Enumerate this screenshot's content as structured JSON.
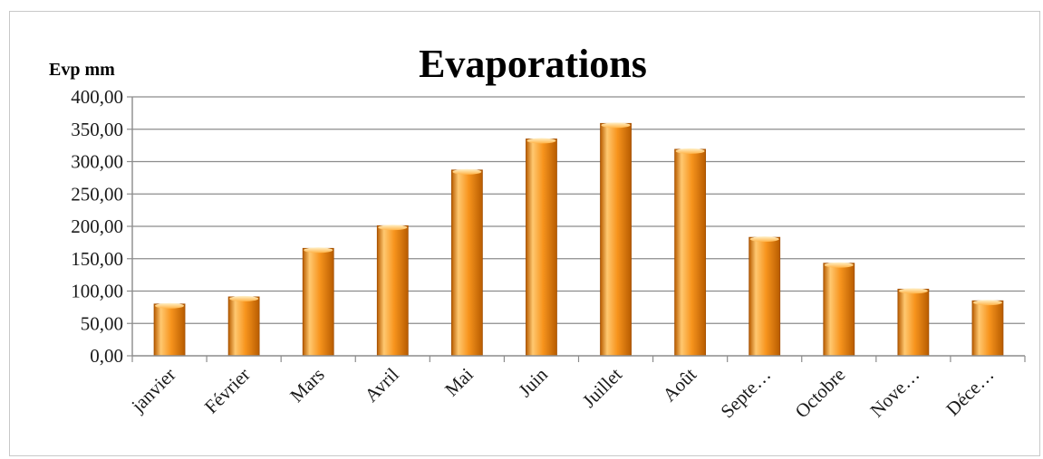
{
  "chart_data": {
    "type": "bar",
    "title": "Evaporations",
    "ylabel": "Evp mm",
    "xlabel": "",
    "ylim": [
      0,
      400
    ],
    "yticks": [
      "0,00",
      "50,00",
      "100,00",
      "150,00",
      "200,00",
      "250,00",
      "300,00",
      "350,00",
      "400,00"
    ],
    "grid": true,
    "categories": [
      "janvier",
      "Février",
      "Mars",
      "Avril",
      "Mai",
      "Juin",
      "Juillet",
      "Août",
      "Septe…",
      "Octobre",
      "Nove…",
      "Déce…"
    ],
    "values": [
      80,
      91,
      166,
      201,
      287,
      335,
      359,
      319,
      183,
      143,
      103,
      85
    ],
    "colors": {
      "bar_light": "#ffc870",
      "bar_mid": "#f7941d",
      "bar_dark": "#b85c00",
      "grid": "#8c8c8c",
      "axis": "#8c8c8c"
    }
  }
}
